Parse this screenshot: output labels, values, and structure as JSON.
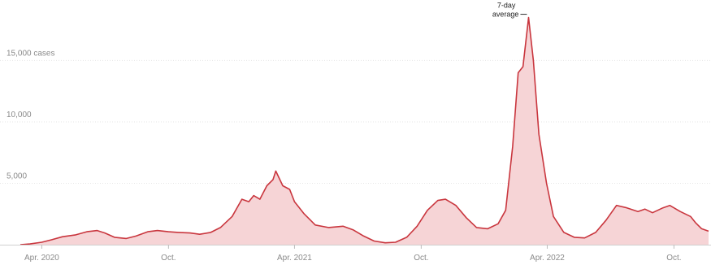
{
  "chart_data": {
    "type": "area",
    "colors": {
      "line": "#c9363e",
      "fill": "#f6d4d6"
    },
    "ylim": [
      0,
      19000
    ],
    "y_ticks": [
      {
        "value": 5000,
        "label": "5,000"
      },
      {
        "value": 10000,
        "label": "10,000"
      },
      {
        "value": 15000,
        "label": "15,000 cases"
      }
    ],
    "x_ticks": [
      {
        "value": "2020-04-01",
        "label": "Apr. 2020"
      },
      {
        "value": "2020-10-01",
        "label": "Oct."
      },
      {
        "value": "2021-04-01",
        "label": "Apr. 2021"
      },
      {
        "value": "2021-10-01",
        "label": "Oct."
      },
      {
        "value": "2022-04-01",
        "label": "Apr. 2022"
      },
      {
        "value": "2022-10-01",
        "label": "Oct."
      }
    ],
    "xlim": [
      "2020-03-01",
      "2022-11-20"
    ],
    "annotation": {
      "lines": [
        "7-day",
        "average"
      ],
      "anchor_date": "2022-01-10"
    },
    "series": [
      {
        "points": [
          [
            "2020-03-01",
            0
          ],
          [
            "2020-03-15",
            60
          ],
          [
            "2020-04-01",
            200
          ],
          [
            "2020-04-15",
            400
          ],
          [
            "2020-05-01",
            650
          ],
          [
            "2020-05-20",
            800
          ],
          [
            "2020-06-05",
            1050
          ],
          [
            "2020-06-20",
            1150
          ],
          [
            "2020-07-01",
            950
          ],
          [
            "2020-07-15",
            600
          ],
          [
            "2020-08-01",
            500
          ],
          [
            "2020-08-15",
            700
          ],
          [
            "2020-09-01",
            1050
          ],
          [
            "2020-09-15",
            1150
          ],
          [
            "2020-10-01",
            1050
          ],
          [
            "2020-10-15",
            1000
          ],
          [
            "2020-11-01",
            950
          ],
          [
            "2020-11-15",
            850
          ],
          [
            "2020-12-01",
            1000
          ],
          [
            "2020-12-15",
            1400
          ],
          [
            "2021-01-01",
            2300
          ],
          [
            "2021-01-15",
            3700
          ],
          [
            "2021-01-25",
            3500
          ],
          [
            "2021-02-01",
            4000
          ],
          [
            "2021-02-10",
            3700
          ],
          [
            "2021-02-20",
            4800
          ],
          [
            "2021-03-01",
            5300
          ],
          [
            "2021-03-05",
            6000
          ],
          [
            "2021-03-15",
            4800
          ],
          [
            "2021-03-25",
            4500
          ],
          [
            "2021-04-01",
            3500
          ],
          [
            "2021-04-15",
            2500
          ],
          [
            "2021-05-01",
            1600
          ],
          [
            "2021-05-20",
            1400
          ],
          [
            "2021-06-10",
            1500
          ],
          [
            "2021-06-25",
            1200
          ],
          [
            "2021-07-10",
            700
          ],
          [
            "2021-07-25",
            300
          ],
          [
            "2021-08-10",
            150
          ],
          [
            "2021-08-25",
            200
          ],
          [
            "2021-09-10",
            600
          ],
          [
            "2021-09-25",
            1500
          ],
          [
            "2021-10-10",
            2800
          ],
          [
            "2021-10-25",
            3600
          ],
          [
            "2021-11-05",
            3700
          ],
          [
            "2021-11-20",
            3200
          ],
          [
            "2021-12-05",
            2200
          ],
          [
            "2021-12-20",
            1400
          ],
          [
            "2022-01-05",
            1300
          ],
          [
            "2022-01-20",
            1700
          ],
          [
            "2022-01-31",
            2800
          ],
          [
            "2022-02-10",
            8000
          ],
          [
            "2022-02-18",
            14000
          ],
          [
            "2022-02-25",
            14500
          ],
          [
            "2022-03-05",
            18500
          ],
          [
            "2022-03-12",
            15000
          ],
          [
            "2022-03-20",
            9000
          ],
          [
            "2022-03-31",
            5000
          ],
          [
            "2022-04-10",
            2300
          ],
          [
            "2022-04-25",
            1000
          ],
          [
            "2022-05-10",
            600
          ],
          [
            "2022-05-25",
            550
          ],
          [
            "2022-06-10",
            1000
          ],
          [
            "2022-06-25",
            2000
          ],
          [
            "2022-07-10",
            3200
          ],
          [
            "2022-07-25",
            3000
          ],
          [
            "2022-08-10",
            2700
          ],
          [
            "2022-08-20",
            2900
          ],
          [
            "2022-08-31",
            2600
          ],
          [
            "2022-09-15",
            3000
          ],
          [
            "2022-09-25",
            3200
          ],
          [
            "2022-10-10",
            2700
          ],
          [
            "2022-10-25",
            2300
          ],
          [
            "2022-11-01",
            1800
          ],
          [
            "2022-11-10",
            1300
          ],
          [
            "2022-11-20",
            1100
          ]
        ]
      }
    ]
  }
}
